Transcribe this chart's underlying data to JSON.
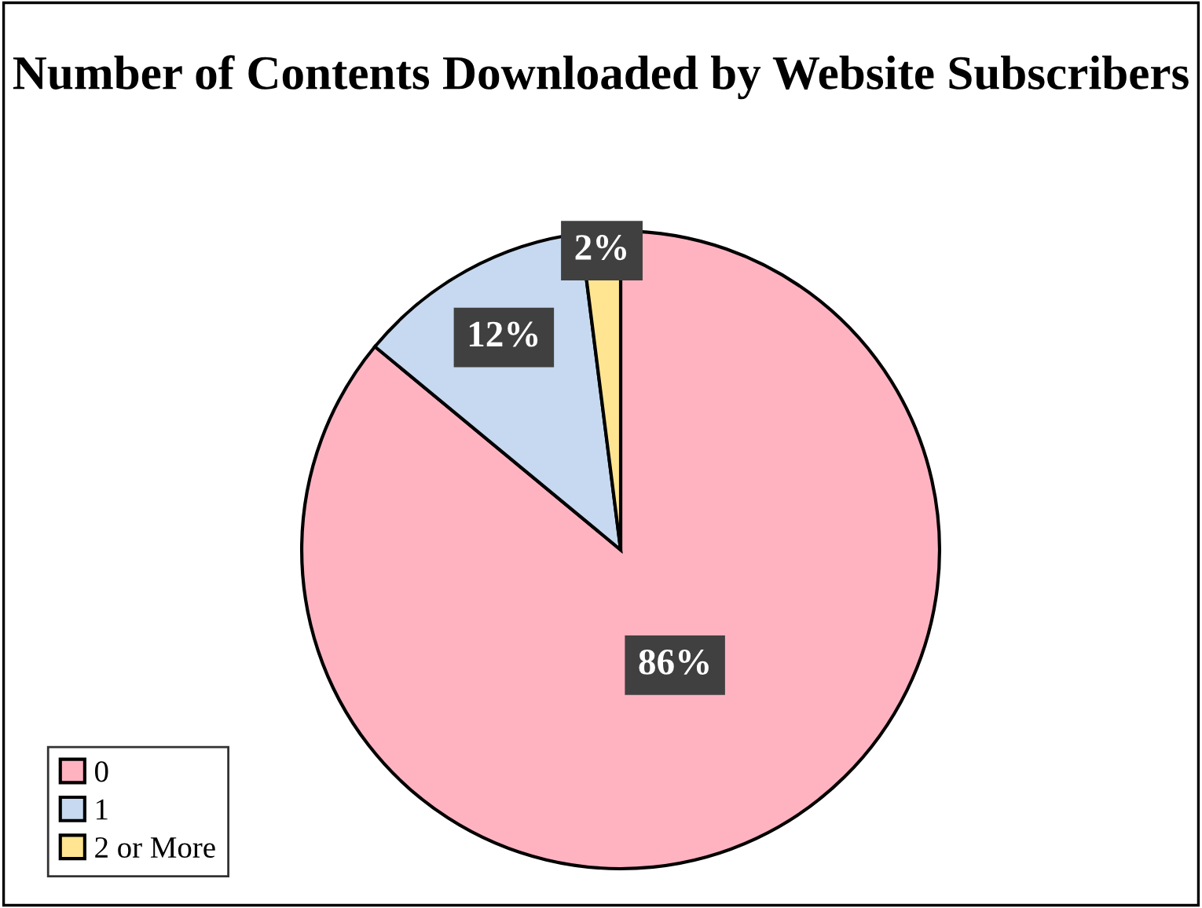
{
  "chart_data": {
    "type": "pie",
    "title": "Number of Contents Downloaded by Website Subscribers",
    "categories": [
      "0",
      "1",
      "2 or More"
    ],
    "values": [
      86,
      12,
      2
    ],
    "colors": [
      "#ffb3c1",
      "#c6d9f0",
      "#ffe591"
    ],
    "value_labels": [
      "86%",
      "12%",
      "2%"
    ],
    "legend": "bottom left"
  }
}
